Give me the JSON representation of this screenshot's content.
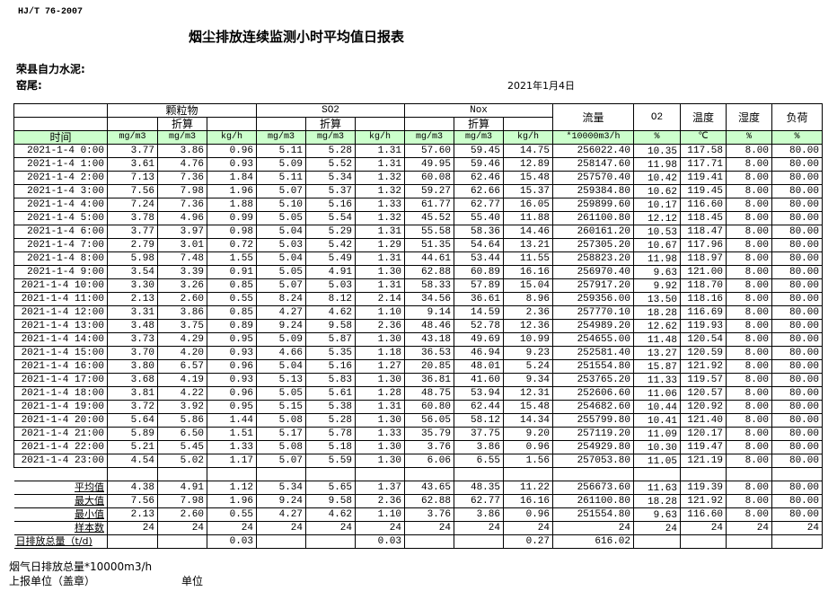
{
  "header": {
    "standard": "HJ/T  76-2007",
    "title": "烟尘排放连续监测小时平均值日报表",
    "company": "荣县自力水泥:",
    "kiln": "窑尾:",
    "date": "2021年1月4日"
  },
  "table": {
    "groups": {
      "particulate": "颗粒物",
      "so2": "SO2",
      "nox": "Nox",
      "flow": "流量",
      "o2": "O2",
      "temp": "温度",
      "humidity": "湿度",
      "load": "负荷"
    },
    "converted_label": "折算",
    "time_header": "时间",
    "units": [
      "mg/m3",
      "mg/m3",
      "kg/h",
      "mg/m3",
      "mg/m3",
      "kg/h",
      "mg/m3",
      "mg/m3",
      "kg/h",
      "*10000m3/h",
      "%",
      "℃",
      "%",
      "%"
    ],
    "rows": [
      [
        "2021-1-4 0:00",
        "3.77",
        "3.86",
        "0.96",
        "5.11",
        "5.28",
        "1.31",
        "57.60",
        "59.45",
        "14.75",
        "256022.40",
        "10.35",
        "117.58",
        "8.00",
        "80.00"
      ],
      [
        "2021-1-4 1:00",
        "3.61",
        "4.76",
        "0.93",
        "5.09",
        "5.52",
        "1.31",
        "49.95",
        "59.46",
        "12.89",
        "258147.60",
        "11.98",
        "117.71",
        "8.00",
        "80.00"
      ],
      [
        "2021-1-4 2:00",
        "7.13",
        "7.36",
        "1.84",
        "5.11",
        "5.34",
        "1.32",
        "60.08",
        "62.46",
        "15.48",
        "257570.40",
        "10.42",
        "119.41",
        "8.00",
        "80.00"
      ],
      [
        "2021-1-4 3:00",
        "7.56",
        "7.98",
        "1.96",
        "5.07",
        "5.37",
        "1.32",
        "59.27",
        "62.66",
        "15.37",
        "259384.80",
        "10.62",
        "119.45",
        "8.00",
        "80.00"
      ],
      [
        "2021-1-4 4:00",
        "7.24",
        "7.36",
        "1.88",
        "5.10",
        "5.16",
        "1.33",
        "61.77",
        "62.77",
        "16.05",
        "259899.60",
        "10.17",
        "116.60",
        "8.00",
        "80.00"
      ],
      [
        "2021-1-4 5:00",
        "3.78",
        "4.96",
        "0.99",
        "5.05",
        "5.54",
        "1.32",
        "45.52",
        "55.40",
        "11.88",
        "261100.80",
        "12.12",
        "118.45",
        "8.00",
        "80.00"
      ],
      [
        "2021-1-4 6:00",
        "3.77",
        "3.97",
        "0.98",
        "5.04",
        "5.29",
        "1.31",
        "55.58",
        "58.36",
        "14.46",
        "260161.20",
        "10.53",
        "118.47",
        "8.00",
        "80.00"
      ],
      [
        "2021-1-4 7:00",
        "2.79",
        "3.01",
        "0.72",
        "5.03",
        "5.42",
        "1.29",
        "51.35",
        "54.64",
        "13.21",
        "257305.20",
        "10.67",
        "117.96",
        "8.00",
        "80.00"
      ],
      [
        "2021-1-4 8:00",
        "5.98",
        "7.48",
        "1.55",
        "5.04",
        "5.49",
        "1.31",
        "44.61",
        "53.44",
        "11.55",
        "258823.20",
        "11.98",
        "118.97",
        "8.00",
        "80.00"
      ],
      [
        "2021-1-4 9:00",
        "3.54",
        "3.39",
        "0.91",
        "5.05",
        "4.91",
        "1.30",
        "62.88",
        "60.89",
        "16.16",
        "256970.40",
        "9.63",
        "121.00",
        "8.00",
        "80.00"
      ],
      [
        "2021-1-4 10:00",
        "3.30",
        "3.26",
        "0.85",
        "5.07",
        "5.03",
        "1.31",
        "58.33",
        "57.89",
        "15.04",
        "257917.20",
        "9.92",
        "118.70",
        "8.00",
        "80.00"
      ],
      [
        "2021-1-4 11:00",
        "2.13",
        "2.60",
        "0.55",
        "8.24",
        "8.12",
        "2.14",
        "34.56",
        "36.61",
        "8.96",
        "259356.00",
        "13.50",
        "118.16",
        "8.00",
        "80.00"
      ],
      [
        "2021-1-4 12:00",
        "3.31",
        "3.86",
        "0.85",
        "4.27",
        "4.62",
        "1.10",
        "9.14",
        "14.59",
        "2.36",
        "257770.10",
        "18.28",
        "116.69",
        "8.00",
        "80.00"
      ],
      [
        "2021-1-4 13:00",
        "3.48",
        "3.75",
        "0.89",
        "9.24",
        "9.58",
        "2.36",
        "48.46",
        "52.78",
        "12.36",
        "254989.20",
        "12.62",
        "119.93",
        "8.00",
        "80.00"
      ],
      [
        "2021-1-4 14:00",
        "3.73",
        "4.29",
        "0.95",
        "5.09",
        "5.87",
        "1.30",
        "43.18",
        "49.69",
        "10.99",
        "254655.00",
        "11.48",
        "120.54",
        "8.00",
        "80.00"
      ],
      [
        "2021-1-4 15:00",
        "3.70",
        "4.20",
        "0.93",
        "4.66",
        "5.35",
        "1.18",
        "36.53",
        "46.94",
        "9.23",
        "252581.40",
        "13.27",
        "120.59",
        "8.00",
        "80.00"
      ],
      [
        "2021-1-4 16:00",
        "3.80",
        "6.57",
        "0.96",
        "5.04",
        "5.16",
        "1.27",
        "20.85",
        "48.01",
        "5.24",
        "251554.80",
        "15.87",
        "121.92",
        "8.00",
        "80.00"
      ],
      [
        "2021-1-4 17:00",
        "3.68",
        "4.19",
        "0.93",
        "5.13",
        "5.83",
        "1.30",
        "36.81",
        "41.60",
        "9.34",
        "253765.20",
        "11.33",
        "119.57",
        "8.00",
        "80.00"
      ],
      [
        "2021-1-4 18:00",
        "3.81",
        "4.22",
        "0.96",
        "5.05",
        "5.61",
        "1.28",
        "48.75",
        "53.94",
        "12.31",
        "252606.60",
        "11.06",
        "120.57",
        "8.00",
        "80.00"
      ],
      [
        "2021-1-4 19:00",
        "3.72",
        "3.92",
        "0.95",
        "5.15",
        "5.38",
        "1.31",
        "60.80",
        "62.44",
        "15.48",
        "254682.60",
        "10.44",
        "120.92",
        "8.00",
        "80.00"
      ],
      [
        "2021-1-4 20:00",
        "5.64",
        "5.86",
        "1.44",
        "5.08",
        "5.28",
        "1.30",
        "56.05",
        "58.12",
        "14.34",
        "255799.80",
        "10.41",
        "121.40",
        "8.00",
        "80.00"
      ],
      [
        "2021-1-4 21:00",
        "5.89",
        "6.50",
        "1.51",
        "5.17",
        "5.78",
        "1.33",
        "35.79",
        "37.75",
        "9.20",
        "257119.20",
        "11.09",
        "120.17",
        "8.00",
        "80.00"
      ],
      [
        "2021-1-4 22:00",
        "5.21",
        "5.45",
        "1.33",
        "5.08",
        "5.18",
        "1.30",
        "3.76",
        "3.86",
        "0.96",
        "254929.80",
        "10.30",
        "119.47",
        "8.00",
        "80.00"
      ],
      [
        "2021-1-4 23:00",
        "4.54",
        "5.02",
        "1.17",
        "5.07",
        "5.59",
        "1.30",
        "6.06",
        "6.55",
        "1.56",
        "257053.80",
        "11.05",
        "121.19",
        "8.00",
        "80.00"
      ]
    ],
    "stats": [
      [
        "平均值",
        "4.38",
        "4.91",
        "1.12",
        "5.34",
        "5.65",
        "1.37",
        "43.65",
        "48.35",
        "11.22",
        "256673.60",
        "11.63",
        "119.39",
        "8.00",
        "80.00"
      ],
      [
        "最大值",
        "7.56",
        "7.98",
        "1.96",
        "9.24",
        "9.58",
        "2.36",
        "62.88",
        "62.77",
        "16.16",
        "261100.80",
        "18.28",
        "121.92",
        "8.00",
        "80.00"
      ],
      [
        "最小值",
        "2.13",
        "2.60",
        "0.55",
        "4.27",
        "4.62",
        "1.10",
        "3.76",
        "3.86",
        "0.96",
        "251554.80",
        "9.63",
        "116.60",
        "8.00",
        "80.00"
      ],
      [
        "样本数",
        "24",
        "24",
        "24",
        "24",
        "24",
        "24",
        "24",
        "24",
        "24",
        "24",
        "24",
        "24",
        "24",
        "24"
      ]
    ],
    "daily_total": [
      "日排放总量（t/d)",
      "",
      "",
      "0.03",
      "",
      "",
      "0.03",
      "",
      "",
      "0.27",
      "616.02",
      "",
      "",
      "",
      ""
    ]
  },
  "footer": {
    "flue_gas_total": "烟气日排放总量*10000m3/h",
    "reporting_unit": "上报单位（盖章）",
    "unit": "单位"
  },
  "colors": {
    "unit_row_bg": "#ccffcc"
  }
}
